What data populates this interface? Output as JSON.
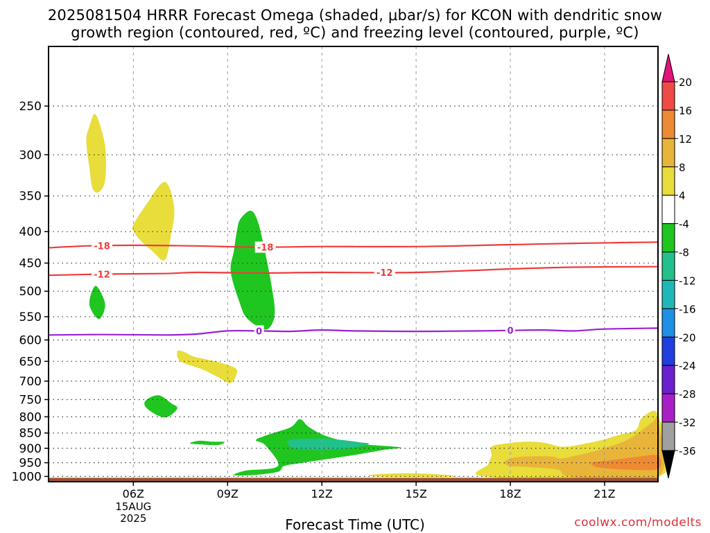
{
  "title": {
    "line1": "2025081504 HRRR Forecast Omega (shaded, μbar/s) for KCON with dendritic snow",
    "line2": "growth region (contoured, red, ºC) and freezing level (contoured, purple, ºC)"
  },
  "xlabel": "Forecast Time (UTC)",
  "credit": "coolwx.com/modelts",
  "chart_data": {
    "type": "heatmap",
    "x": {
      "unit": "forecast hour UTC 15 Aug 2025",
      "range": [
        3.3,
        22.7
      ],
      "ticks": [
        {
          "value": 6,
          "label": "06Z",
          "sub": [
            "15AUG",
            "2025"
          ]
        },
        {
          "value": 9,
          "label": "09Z"
        },
        {
          "value": 12,
          "label": "12Z"
        },
        {
          "value": 15,
          "label": "15Z"
        },
        {
          "value": 18,
          "label": "18Z"
        },
        {
          "value": 21,
          "label": "21Z"
        }
      ]
    },
    "y": {
      "unit": "pressure hPa",
      "scale": "log",
      "range": [
        1020,
        200
      ],
      "ticks": [
        250,
        300,
        350,
        400,
        450,
        500,
        550,
        600,
        650,
        700,
        750,
        800,
        850,
        900,
        950,
        1000
      ]
    },
    "colorbar": {
      "labels": [
        "20",
        "16",
        "12",
        "8",
        "4",
        "-4",
        "-8",
        "-12",
        "-16",
        "-20",
        "-24",
        "-28",
        "-32",
        "-36"
      ],
      "bins": [
        {
          "from": 16,
          "to": 20,
          "color": "#f04a46"
        },
        {
          "from": 12,
          "to": 16,
          "color": "#ee8a33"
        },
        {
          "from": 8,
          "to": 12,
          "color": "#e8b53a"
        },
        {
          "from": 4,
          "to": 8,
          "color": "#e8dd3a"
        },
        {
          "from": -4,
          "to": 4,
          "color": "#ffffff"
        },
        {
          "from": -8,
          "to": -4,
          "color": "#1fc61f"
        },
        {
          "from": -12,
          "to": -8,
          "color": "#22c08a"
        },
        {
          "from": -16,
          "to": -12,
          "color": "#1fb8b8"
        },
        {
          "from": -20,
          "to": -16,
          "color": "#1e90e6"
        },
        {
          "from": -24,
          "to": -20,
          "color": "#1f3fe0"
        },
        {
          "from": -28,
          "to": -24,
          "color": "#6a1fd0"
        },
        {
          "from": -32,
          "to": -28,
          "color": "#a81fc8"
        },
        {
          "from": -36,
          "to": -32,
          "color": "#a0a0a0"
        }
      ],
      "over_color": "#e0147a",
      "under_color": "#000000"
    },
    "ground_color": "#a0522d",
    "contours": [
      {
        "level": "-18",
        "color": "#ee3b3b",
        "label_x": [
          5.0,
          10.2
        ],
        "points": [
          [
            3.3,
            425
          ],
          [
            4.5,
            422
          ],
          [
            6,
            421
          ],
          [
            8,
            422
          ],
          [
            10,
            424
          ],
          [
            12,
            423
          ],
          [
            15,
            423
          ],
          [
            18,
            420
          ],
          [
            20,
            418
          ],
          [
            22.7,
            416
          ]
        ]
      },
      {
        "level": "-12",
        "color": "#ee3b3b",
        "label_x": [
          5.0,
          14.0
        ],
        "points": [
          [
            3.3,
            471
          ],
          [
            5,
            469
          ],
          [
            7,
            468
          ],
          [
            8,
            466
          ],
          [
            10,
            467
          ],
          [
            12,
            466
          ],
          [
            15,
            466
          ],
          [
            18,
            460
          ],
          [
            20,
            457
          ],
          [
            22.7,
            456
          ]
        ]
      },
      {
        "level": "0",
        "color": "#9b1fd2",
        "label_x": [
          10.0,
          18.0
        ],
        "points": [
          [
            3.3,
            589
          ],
          [
            5,
            588
          ],
          [
            7,
            589
          ],
          [
            8,
            587
          ],
          [
            9,
            580
          ],
          [
            10,
            580
          ],
          [
            11,
            581
          ],
          [
            12,
            578
          ],
          [
            13,
            580
          ],
          [
            15,
            581
          ],
          [
            17,
            580
          ],
          [
            18,
            579
          ],
          [
            19,
            578
          ],
          [
            20,
            580
          ],
          [
            21,
            576
          ],
          [
            22.7,
            574
          ]
        ]
      }
    ],
    "regions": [
      {
        "value": 6,
        "points": [
          [
            4.8,
            258
          ],
          [
            5.1,
            290
          ],
          [
            5.1,
            330
          ],
          [
            4.9,
            345
          ],
          [
            4.7,
            340
          ],
          [
            4.6,
            315
          ],
          [
            4.5,
            285
          ],
          [
            4.6,
            270
          ]
        ]
      },
      {
        "value": 6,
        "points": [
          [
            6.0,
            390
          ],
          [
            6.4,
            362
          ],
          [
            7.0,
            332
          ],
          [
            7.3,
            365
          ],
          [
            7.2,
            405
          ],
          [
            7.0,
            445
          ],
          [
            6.6,
            430
          ],
          [
            6.2,
            412
          ],
          [
            6.0,
            398
          ]
        ]
      },
      {
        "value": 6,
        "points": [
          [
            7.4,
            626
          ],
          [
            7.5,
            650
          ],
          [
            8.2,
            670
          ],
          [
            8.7,
            690
          ],
          [
            9.1,
            705
          ],
          [
            9.3,
            672
          ],
          [
            8.9,
            656
          ],
          [
            8.3,
            645
          ],
          [
            7.9,
            638
          ],
          [
            7.6,
            627
          ]
        ]
      },
      {
        "value": -6,
        "points": [
          [
            4.8,
            490
          ],
          [
            5.1,
            525
          ],
          [
            4.9,
            555
          ],
          [
            4.6,
            525
          ]
        ]
      },
      {
        "value": -6,
        "points": [
          [
            9.3,
            398
          ],
          [
            9.4,
            382
          ],
          [
            9.7,
            370
          ],
          [
            9.9,
            378
          ],
          [
            10.1,
            410
          ],
          [
            10.4,
            490
          ],
          [
            10.5,
            545
          ],
          [
            10.3,
            575
          ],
          [
            10.0,
            572
          ],
          [
            9.6,
            552
          ],
          [
            9.4,
            525
          ],
          [
            9.1,
            465
          ],
          [
            9.2,
            430
          ]
        ]
      },
      {
        "value": -6,
        "points": [
          [
            6.4,
            752
          ],
          [
            6.8,
            738
          ],
          [
            7.2,
            760
          ],
          [
            7.4,
            775
          ],
          [
            7.1,
            800
          ],
          [
            6.8,
            797
          ],
          [
            6.4,
            772
          ]
        ]
      },
      {
        "value": -6,
        "points": [
          [
            8.1,
            875
          ],
          [
            8.5,
            878
          ],
          [
            8.9,
            879
          ],
          [
            8.7,
            889
          ],
          [
            8.3,
            888
          ],
          [
            7.8,
            884
          ]
        ]
      },
      {
        "value": -6,
        "points": [
          [
            10.3,
            855
          ],
          [
            11.0,
            832
          ],
          [
            11.3,
            807
          ],
          [
            11.6,
            832
          ],
          [
            12.2,
            862
          ],
          [
            13.2,
            885
          ],
          [
            14.5,
            897
          ],
          [
            14.0,
            905
          ],
          [
            13.2,
            920
          ],
          [
            12.3,
            935
          ],
          [
            11.4,
            950
          ],
          [
            10.8,
            962
          ],
          [
            10.6,
            983
          ],
          [
            9.8,
            995
          ],
          [
            9.2,
            995
          ],
          [
            9.6,
            978
          ],
          [
            10.6,
            962
          ],
          [
            10.2,
            890
          ],
          [
            9.9,
            873
          ]
        ]
      },
      {
        "value": -10,
        "points": [
          [
            11.0,
            872
          ],
          [
            12.0,
            868
          ],
          [
            12.6,
            872
          ],
          [
            13.2,
            880
          ],
          [
            13.5,
            885
          ],
          [
            13.0,
            898
          ],
          [
            12.2,
            905
          ],
          [
            11.5,
            905
          ],
          [
            11.0,
            895
          ]
        ]
      },
      {
        "value": 6,
        "points": [
          [
            13.5,
            995
          ],
          [
            14.5,
            988
          ],
          [
            15.5,
            991
          ],
          [
            16.2,
            997
          ],
          [
            16.0,
            1002
          ],
          [
            14.0,
            1002
          ]
        ]
      },
      {
        "value": 6,
        "points": [
          [
            17.4,
            895
          ],
          [
            17.8,
            885
          ],
          [
            18.5,
            878
          ],
          [
            19.1,
            882
          ],
          [
            19.7,
            895
          ],
          [
            20.5,
            882
          ],
          [
            21.0,
            870
          ],
          [
            21.5,
            855
          ],
          [
            22.0,
            840
          ],
          [
            22.2,
            802
          ],
          [
            22.7,
            795
          ],
          [
            22.7,
            1002
          ],
          [
            17.3,
            1002
          ],
          [
            17.3,
            955
          ],
          [
            17.4,
            925
          ]
        ]
      },
      {
        "value": 10,
        "points": [
          [
            17.8,
            950
          ],
          [
            18.0,
            935
          ],
          [
            18.5,
            928
          ],
          [
            19.3,
            928
          ],
          [
            19.6,
            935
          ],
          [
            20.1,
            925
          ],
          [
            21.0,
            900
          ],
          [
            21.8,
            868
          ],
          [
            22.5,
            818
          ],
          [
            22.7,
            812
          ],
          [
            22.7,
            1002
          ],
          [
            20.0,
            1002
          ],
          [
            19.5,
            975
          ],
          [
            18.5,
            965
          ],
          [
            18.0,
            962
          ]
        ]
      },
      {
        "value": 14,
        "points": [
          [
            20.6,
            950
          ],
          [
            21.3,
            940
          ],
          [
            22.0,
            930
          ],
          [
            22.7,
            925
          ],
          [
            22.7,
            972
          ],
          [
            21.8,
            975
          ],
          [
            20.8,
            967
          ]
        ]
      }
    ]
  }
}
